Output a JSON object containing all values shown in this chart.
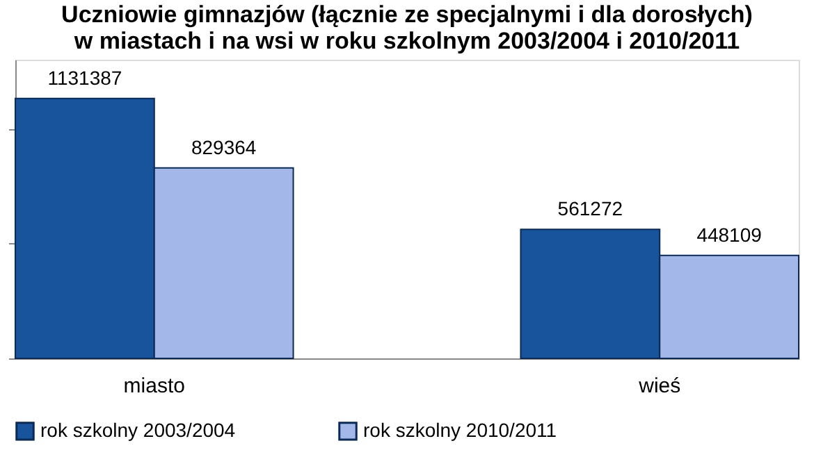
{
  "chart_data": {
    "type": "bar",
    "title": [
      "Uczniowie gimnazjów (łącznie ze specjalnymi i dla dorosłych)",
      "w miastach i na wsi w roku szkolnym  2003/2004 i 2010/2011"
    ],
    "categories": [
      "miasto",
      "wieś"
    ],
    "series": [
      {
        "name": "rok szkolny 2003/2004",
        "color": "#17549b",
        "values": [
          1131387,
          561272
        ]
      },
      {
        "name": "rok szkolny 2010/2011",
        "color": "#a3b8e8",
        "values": [
          829364,
          448109
        ]
      }
    ],
    "ylim": [
      0,
      1300000
    ],
    "yticks": [
      {
        "value": 0,
        "label": null
      },
      {
        "value": 500000,
        "label": null
      },
      {
        "value": 1000000,
        "label": null
      }
    ],
    "tick_labels": "x",
    "data_labels": true,
    "legend": "bottom",
    "grid": false
  }
}
